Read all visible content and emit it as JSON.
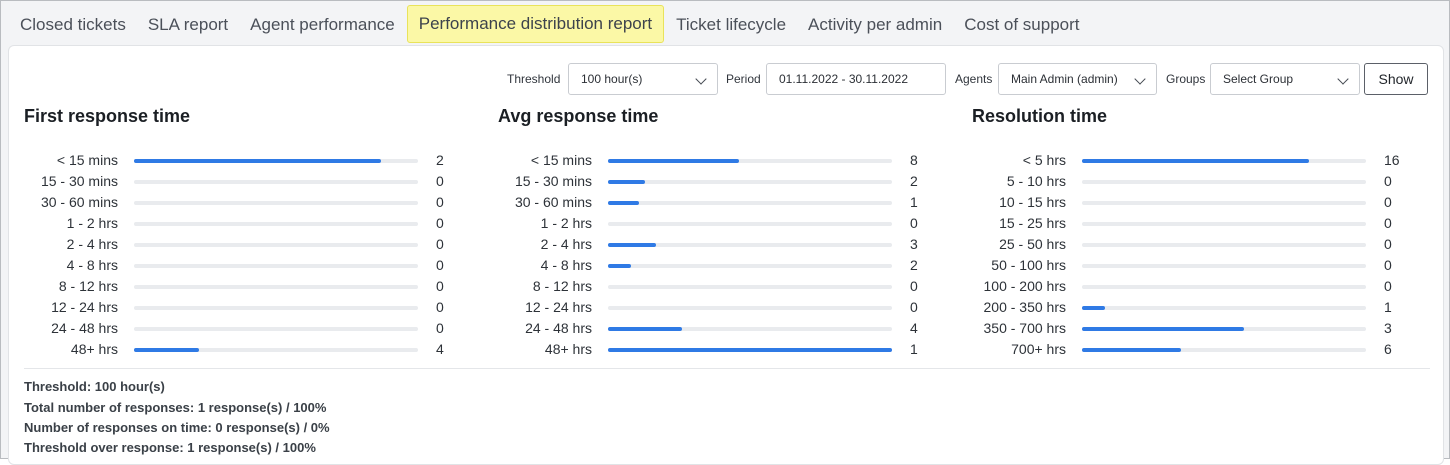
{
  "tabs": [
    {
      "label": "Closed tickets",
      "active": false
    },
    {
      "label": "SLA report",
      "active": false
    },
    {
      "label": "Agent performance",
      "active": false
    },
    {
      "label": "Performance distribution report",
      "active": true
    },
    {
      "label": "Ticket lifecycle",
      "active": false
    },
    {
      "label": "Activity per admin",
      "active": false
    },
    {
      "label": "Cost of support",
      "active": false
    }
  ],
  "filters": {
    "threshold_label": "Threshold",
    "threshold_value": "100 hour(s)",
    "period_label": "Period",
    "period_value": "01.11.2022 - 30.11.2022",
    "agents_label": "Agents",
    "agents_value": "Main Admin (admin)",
    "groups_label": "Groups",
    "groups_value": "Select Group",
    "show_label": "Show"
  },
  "columns": [
    {
      "title": "First response time",
      "rows": [
        {
          "label": "< 15 mins",
          "count": "2",
          "fill": 0.87
        },
        {
          "label": "15 - 30 mins",
          "count": "0",
          "fill": 0
        },
        {
          "label": "30 - 60 mins",
          "count": "0",
          "fill": 0
        },
        {
          "label": "1 - 2 hrs",
          "count": "0",
          "fill": 0
        },
        {
          "label": "2 - 4 hrs",
          "count": "0",
          "fill": 0
        },
        {
          "label": "4 - 8 hrs",
          "count": "0",
          "fill": 0
        },
        {
          "label": "8 - 12 hrs",
          "count": "0",
          "fill": 0
        },
        {
          "label": "12 - 24 hrs",
          "count": "0",
          "fill": 0
        },
        {
          "label": "24 - 48 hrs",
          "count": "0",
          "fill": 0
        },
        {
          "label": "48+ hrs",
          "count": "4",
          "fill": 0.23
        }
      ]
    },
    {
      "title": "Avg response time",
      "rows": [
        {
          "label": "< 15 mins",
          "count": "8",
          "fill": 0.46
        },
        {
          "label": "15 - 30 mins",
          "count": "2",
          "fill": 0.13
        },
        {
          "label": "30 - 60 mins",
          "count": "1",
          "fill": 0.11
        },
        {
          "label": "1 - 2 hrs",
          "count": "0",
          "fill": 0
        },
        {
          "label": "2 - 4 hrs",
          "count": "3",
          "fill": 0.17
        },
        {
          "label": "4 - 8 hrs",
          "count": "2",
          "fill": 0.08
        },
        {
          "label": "8 - 12 hrs",
          "count": "0",
          "fill": 0
        },
        {
          "label": "12 - 24 hrs",
          "count": "0",
          "fill": 0
        },
        {
          "label": "24 - 48 hrs",
          "count": "4",
          "fill": 0.26
        },
        {
          "label": "48+ hrs",
          "count": "1",
          "fill": 1.0
        }
      ]
    },
    {
      "title": "Resolution time",
      "rows": [
        {
          "label": "< 5 hrs",
          "count": "16",
          "fill": 0.8
        },
        {
          "label": "5 - 10 hrs",
          "count": "0",
          "fill": 0
        },
        {
          "label": "10 - 15 hrs",
          "count": "0",
          "fill": 0
        },
        {
          "label": "15 - 25 hrs",
          "count": "0",
          "fill": 0
        },
        {
          "label": "25 - 50 hrs",
          "count": "0",
          "fill": 0
        },
        {
          "label": "50 - 100 hrs",
          "count": "0",
          "fill": 0
        },
        {
          "label": "100 - 200 hrs",
          "count": "0",
          "fill": 0
        },
        {
          "label": "200 - 350 hrs",
          "count": "1",
          "fill": 0.08
        },
        {
          "label": "350 - 700 hrs",
          "count": "3",
          "fill": 0.57
        },
        {
          "label": "700+ hrs",
          "count": "6",
          "fill": 0.35
        }
      ]
    }
  ],
  "summary": [
    "Threshold: 100 hour(s)",
    "Total number of responses: 1 response(s) / 100%",
    "Number of responses on time: 0 response(s) / 0%",
    "Threshold over response: 1 response(s) / 100%"
  ],
  "colors": {
    "bar_fill": "#2f7ae5",
    "bar_track": "#e9ebee",
    "active_tab": "#fbf8a6"
  }
}
